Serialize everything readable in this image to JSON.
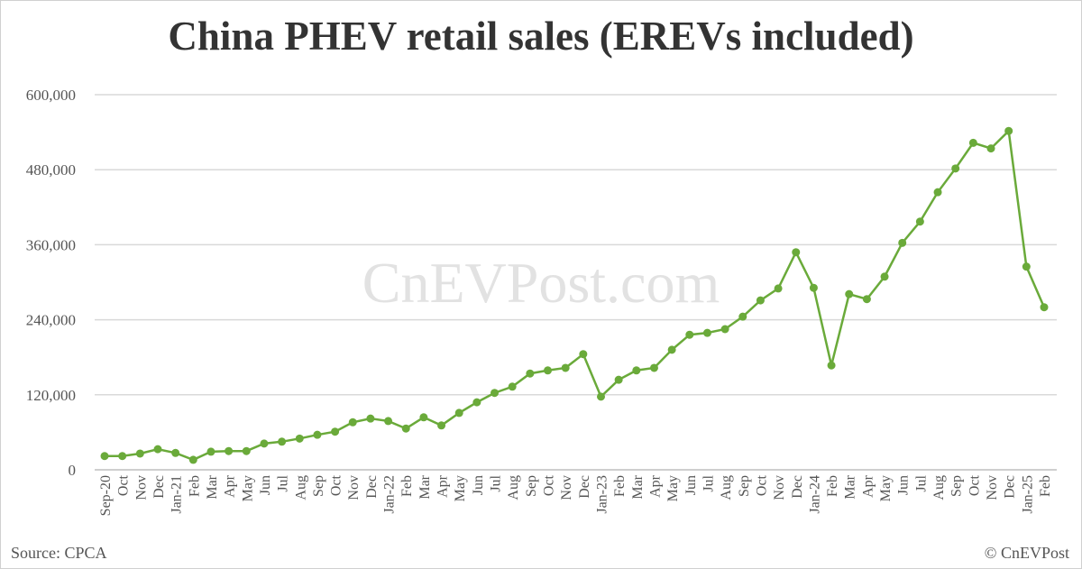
{
  "chart_data": {
    "type": "line",
    "title": "China PHEV retail sales (EREVs included)",
    "xlabel": "",
    "ylabel": "",
    "ylim": [
      0,
      600000
    ],
    "yticks": [
      "0",
      "120,000",
      "240,000",
      "360,000",
      "480,000",
      "600,000"
    ],
    "grid": true,
    "line_color": "#6aaa3a",
    "watermark": "CnEVPost.com",
    "categories": [
      "Sep-20",
      "Oct",
      "Nov",
      "Dec",
      "Jan-21",
      "Feb",
      "Mar",
      "Apr",
      "May",
      "Jun",
      "Jul",
      "Aug",
      "Sep",
      "Oct",
      "Nov",
      "Dec",
      "Jan-22",
      "Feb",
      "Mar",
      "Apr",
      "May",
      "Jun",
      "Jul",
      "Aug",
      "Sep",
      "Oct",
      "Nov",
      "Dec",
      "Jan-23",
      "Feb",
      "Mar",
      "Apr",
      "May",
      "Jun",
      "Jul",
      "Aug",
      "Sep",
      "Oct",
      "Nov",
      "Dec",
      "Jan-24",
      "Feb",
      "Mar",
      "Apr",
      "May",
      "Jun",
      "Jul",
      "Aug",
      "Sep",
      "Oct",
      "Nov",
      "Dec",
      "Jan-25",
      "Feb"
    ],
    "values": [
      22000,
      22000,
      26000,
      33000,
      27000,
      16000,
      29000,
      30000,
      30000,
      42000,
      45000,
      50000,
      56000,
      61000,
      76000,
      82000,
      78000,
      66000,
      84000,
      71000,
      91000,
      108000,
      123000,
      133000,
      154000,
      159000,
      163000,
      185000,
      117000,
      144000,
      159000,
      163000,
      192000,
      216000,
      219000,
      225000,
      245000,
      271000,
      290000,
      348000,
      291000,
      167000,
      281000,
      273000,
      309000,
      363000,
      397000,
      444000,
      482000,
      523000,
      514000,
      542000,
      325000,
      260000
    ]
  },
  "footer": {
    "source": "Source: CPCA",
    "copyright": "© CnEVPost"
  }
}
